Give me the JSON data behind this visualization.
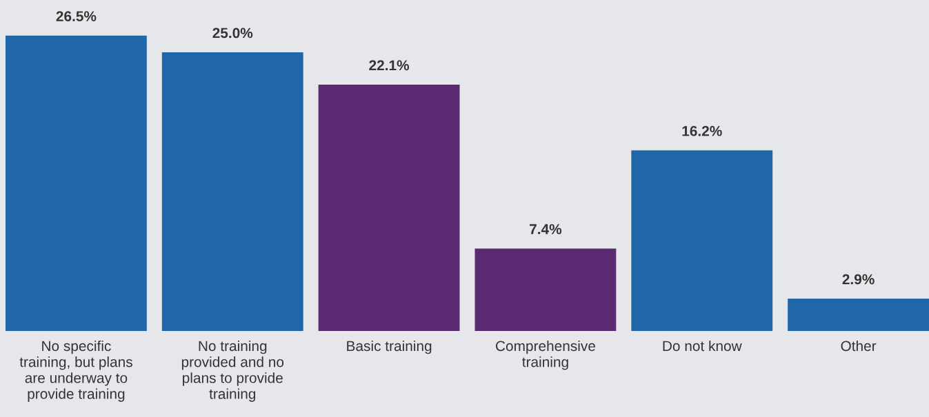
{
  "chart_data": {
    "type": "bar",
    "categories": [
      "No specific\ntraining, but plans\nare underway to\nprovide training",
      "No training\nprovided and no\nplans to provide\ntraining",
      "Basic training",
      "Comprehensive\ntraining",
      "Do not know",
      "Other"
    ],
    "values": [
      26.5,
      25.0,
      22.1,
      7.4,
      16.2,
      2.9
    ],
    "colors": [
      "#2166a8",
      "#2166a8",
      "#5b2a73",
      "#5b2a73",
      "#2166a8",
      "#2166a8"
    ],
    "value_labels": [
      "26.5%",
      "25.0%",
      "22.1%",
      "7.4%",
      "16.2%",
      "2.9%"
    ],
    "data_labels": false
  }
}
